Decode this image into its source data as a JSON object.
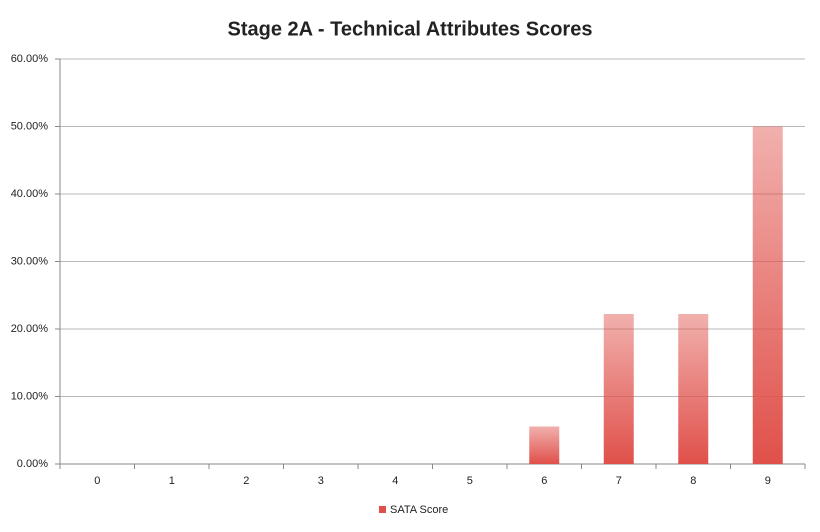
{
  "chart_data": {
    "type": "bar",
    "title": "Stage 2A - Technical Attributes Scores",
    "categories": [
      "0",
      "1",
      "2",
      "3",
      "4",
      "5",
      "6",
      "7",
      "8",
      "9"
    ],
    "series": [
      {
        "name": "SATA Score",
        "color": "#e0504a",
        "values": [
          0,
          0,
          0,
          0,
          0,
          0,
          5.56,
          22.22,
          22.22,
          50
        ]
      }
    ],
    "ylim": [
      0,
      60
    ],
    "yticks": [
      {
        "value": 0,
        "label": "0.00%"
      },
      {
        "value": 10,
        "label": "10.00%"
      },
      {
        "value": 20,
        "label": "20.00%"
      },
      {
        "value": 30,
        "label": "30.00%"
      },
      {
        "value": 40,
        "label": "40.00%"
      },
      {
        "value": 50,
        "label": "50.00%"
      },
      {
        "value": 60,
        "label": "60.00%"
      }
    ],
    "grid": true,
    "legend": "bottom"
  }
}
